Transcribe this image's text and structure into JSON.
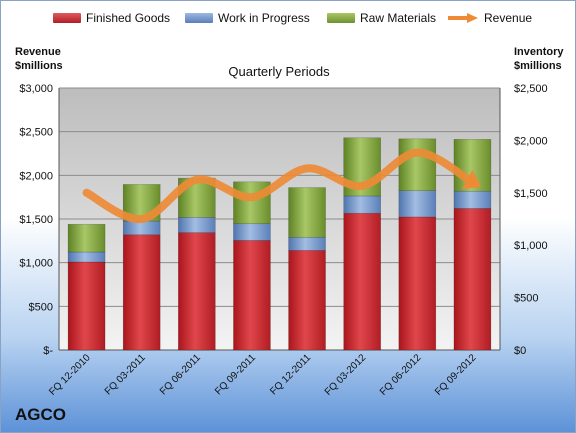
{
  "chart_data": {
    "type": "bar",
    "stacked": true,
    "title": "Quarterly Periods",
    "company": "AGCO",
    "categories": [
      "FQ 12-2010",
      "FQ 03-2011",
      "FQ 06-2011",
      "FQ 09-2011",
      "FQ 12-2011",
      "FQ 03-2012",
      "FQ 06-2012",
      "FQ 09-2012"
    ],
    "series": [
      {
        "name": "Finished Goods",
        "color": "#c0262c",
        "values": [
          840,
          1100,
          1120,
          1045,
          950,
          1305,
          1270,
          1350
        ]
      },
      {
        "name": "Work in Progress",
        "color": "#6f94c9",
        "values": [
          95,
          130,
          145,
          160,
          125,
          165,
          250,
          165
        ]
      },
      {
        "name": "Raw Materials",
        "color": "#7ea33a",
        "values": [
          265,
          350,
          375,
          400,
          475,
          555,
          495,
          495
        ]
      }
    ],
    "line_series": {
      "name": "Revenue",
      "color": "#ee8a36",
      "values": [
        1800,
        1500,
        1950,
        1750,
        2080,
        1880,
        2260,
        1920
      ]
    },
    "left_axis": {
      "title_line1": "Revenue",
      "title_line2": "$millions",
      "ylim": [
        0,
        3000
      ],
      "ticks": [
        "$-",
        "$500",
        "$1,000",
        "$1,500",
        "$2,000",
        "$2,500",
        "$3,000"
      ]
    },
    "right_axis": {
      "title_line1": "Inventory",
      "title_line2": "$millions",
      "ylim": [
        0,
        2500
      ],
      "ticks": [
        "$0",
        "$500",
        "$1,000",
        "$1,500",
        "$2,000",
        "$2,500"
      ]
    },
    "grid": true,
    "legend_position": "top"
  }
}
